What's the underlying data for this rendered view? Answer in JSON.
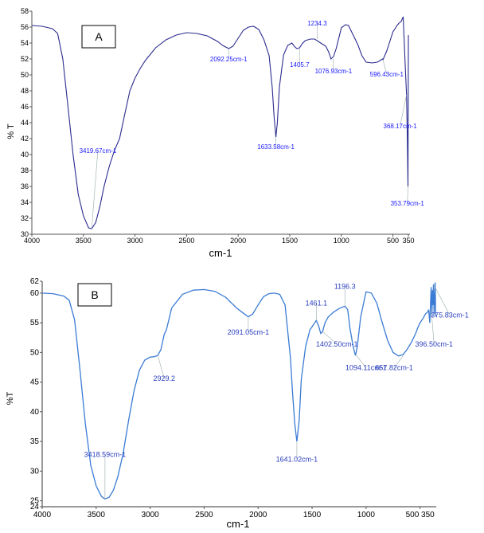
{
  "chart_data": [
    {
      "type": "line",
      "panel_label": "A",
      "xlabel": "cm-1",
      "ylabel": "% T",
      "xlim": [
        4000,
        350
      ],
      "ylim": [
        30,
        58
      ],
      "x_ticks": [
        "4000",
        "3500",
        "3000",
        "2500",
        "2000",
        "1500",
        "1000",
        "500",
        "350"
      ],
      "x_tick_values": [
        4000,
        3500,
        3000,
        2500,
        2000,
        1500,
        1000,
        500,
        350
      ],
      "y_ticks": [
        "30",
        "32",
        "34",
        "36",
        "38",
        "40",
        "42",
        "44",
        "46",
        "48",
        "50",
        "52",
        "54",
        "56",
        "58"
      ],
      "y_tick_values": [
        30,
        32,
        34,
        36,
        38,
        40,
        42,
        44,
        46,
        48,
        50,
        52,
        54,
        56,
        58
      ],
      "series": [
        {
          "color": "#2b2b8f",
          "x": [
            4000,
            3900,
            3800,
            3750,
            3700,
            3650,
            3600,
            3550,
            3500,
            3450,
            3419,
            3380,
            3340,
            3300,
            3250,
            3200,
            3150,
            3100,
            3050,
            3000,
            2950,
            2900,
            2800,
            2700,
            2600,
            2500,
            2400,
            2300,
            2200,
            2150,
            2092,
            2050,
            2000,
            1950,
            1900,
            1850,
            1800,
            1750,
            1700,
            1670,
            1650,
            1634,
            1620,
            1600,
            1560,
            1520,
            1480,
            1450,
            1430,
            1405,
            1380,
            1350,
            1300,
            1260,
            1234,
            1200,
            1150,
            1120,
            1100,
            1076,
            1050,
            1000,
            960,
            930,
            900,
            870,
            840,
            800,
            760,
            700,
            650,
            600,
            596,
            560,
            520,
            500,
            480,
            460,
            440,
            420,
            400,
            380,
            368,
            360,
            354,
            350
          ],
          "y": [
            56.2,
            56.1,
            55.8,
            55.2,
            52.0,
            46.0,
            40.0,
            35.0,
            32.3,
            30.8,
            30.7,
            31.5,
            33.5,
            36.0,
            38.5,
            40.5,
            42.0,
            45.0,
            48.0,
            49.6,
            50.8,
            51.8,
            53.4,
            54.4,
            55.0,
            55.3,
            55.2,
            54.9,
            54.2,
            53.7,
            53.3,
            53.6,
            54.6,
            55.6,
            56.0,
            56.1,
            55.7,
            54.4,
            52.4,
            48.5,
            44.5,
            42.2,
            44.0,
            48.5,
            52.5,
            53.7,
            54.0,
            53.5,
            53.3,
            53.4,
            53.9,
            54.3,
            54.5,
            54.5,
            54.3,
            54.0,
            53.6,
            52.8,
            52.0,
            52.3,
            53.3,
            55.9,
            56.3,
            56.2,
            55.4,
            54.6,
            53.8,
            52.4,
            51.6,
            51.5,
            51.6,
            52.0,
            51.9,
            53.0,
            54.6,
            55.4,
            55.8,
            56.2,
            56.5,
            56.7,
            57.3,
            51.0,
            47.5,
            42.0,
            36.0,
            55.0
          ]
        }
      ],
      "annotations": [
        "3419.67cm-1",
        "2092.25cm-1",
        "1633.58cm-1",
        "1405.7",
        "1234.3",
        "1076.93cm-1",
        "596.43cm-1",
        "368.17cm-1",
        "353.79cm-1"
      ],
      "grid": false,
      "legend": "none"
    },
    {
      "type": "line",
      "panel_label": "B",
      "xlabel": "cm-1",
      "ylabel": "%T",
      "xlim": [
        4000,
        350
      ],
      "ylim": [
        24,
        62
      ],
      "x_ticks": [
        "4000",
        "3500",
        "3000",
        "2500",
        "2000",
        "1500",
        "1000",
        "500 350"
      ],
      "x_tick_values": [
        4000,
        3500,
        3000,
        2500,
        2000,
        1500,
        1000,
        500
      ],
      "y_ticks": [
        "24",
        "25",
        "30",
        "35",
        "40",
        "45",
        "50",
        "55",
        "60",
        "62"
      ],
      "y_tick_values": [
        24,
        25,
        30,
        35,
        40,
        45,
        50,
        55,
        60,
        62
      ],
      "series": [
        {
          "color": "#3a7bd5",
          "x": [
            4000,
            3900,
            3800,
            3750,
            3700,
            3650,
            3600,
            3550,
            3500,
            3450,
            3419,
            3380,
            3340,
            3300,
            3250,
            3200,
            3150,
            3100,
            3050,
            3000,
            2960,
            2929,
            2900,
            2870,
            2850,
            2800,
            2700,
            2600,
            2500,
            2400,
            2300,
            2200,
            2150,
            2091,
            2050,
            2000,
            1950,
            1900,
            1850,
            1800,
            1750,
            1700,
            1680,
            1660,
            1641,
            1620,
            1600,
            1560,
            1520,
            1490,
            1461,
            1440,
            1420,
            1403,
            1380,
            1350,
            1300,
            1250,
            1196,
            1170,
            1150,
            1120,
            1100,
            1094,
            1080,
            1050,
            1000,
            950,
            900,
            850,
            800,
            750,
            700,
            658,
            620,
            580,
            540,
            520,
            500,
            470,
            450,
            430,
            420,
            410,
            397,
            390,
            385,
            380,
            376,
            370,
            360,
            355,
            350
          ],
          "y": [
            60.0,
            59.9,
            59.5,
            58.8,
            55.5,
            47.0,
            38.0,
            31.0,
            27.5,
            25.7,
            25.3,
            25.6,
            26.8,
            29.0,
            33.0,
            38.5,
            43.5,
            47.0,
            48.7,
            49.2,
            49.3,
            49.5,
            50.5,
            53.0,
            53.8,
            57.5,
            59.8,
            60.5,
            60.6,
            60.3,
            59.3,
            57.5,
            56.8,
            56.0,
            56.5,
            58.0,
            59.4,
            59.9,
            60.0,
            59.8,
            58.0,
            49.0,
            43.0,
            38.0,
            35.0,
            38.5,
            45.5,
            51.0,
            53.8,
            54.6,
            55.4,
            54.5,
            53.2,
            53.5,
            55.0,
            56.0,
            56.8,
            57.4,
            57.8,
            57.2,
            54.2,
            51.0,
            49.6,
            49.8,
            51.2,
            56.0,
            60.2,
            60.0,
            58.3,
            55.0,
            52.0,
            50.0,
            49.4,
            49.6,
            50.5,
            51.7,
            53.2,
            54.2,
            55.0,
            55.8,
            56.5,
            56.8,
            57.2,
            55.0,
            61.0,
            56.0,
            60.5,
            58.0,
            61.5,
            56.5,
            61.8,
            56.5,
            56.0
          ]
        }
      ],
      "annotations": [
        "2929.2",
        "3418.59cm-1",
        "2091.05cm-1",
        "1641.02cm-1",
        "1461.1",
        "1196.3",
        "1402.50cm-1",
        "1094.11cm-1",
        "657.82cm-1",
        "396.50cm-1",
        "375.83cm-1"
      ],
      "grid": false,
      "legend": "none"
    }
  ]
}
